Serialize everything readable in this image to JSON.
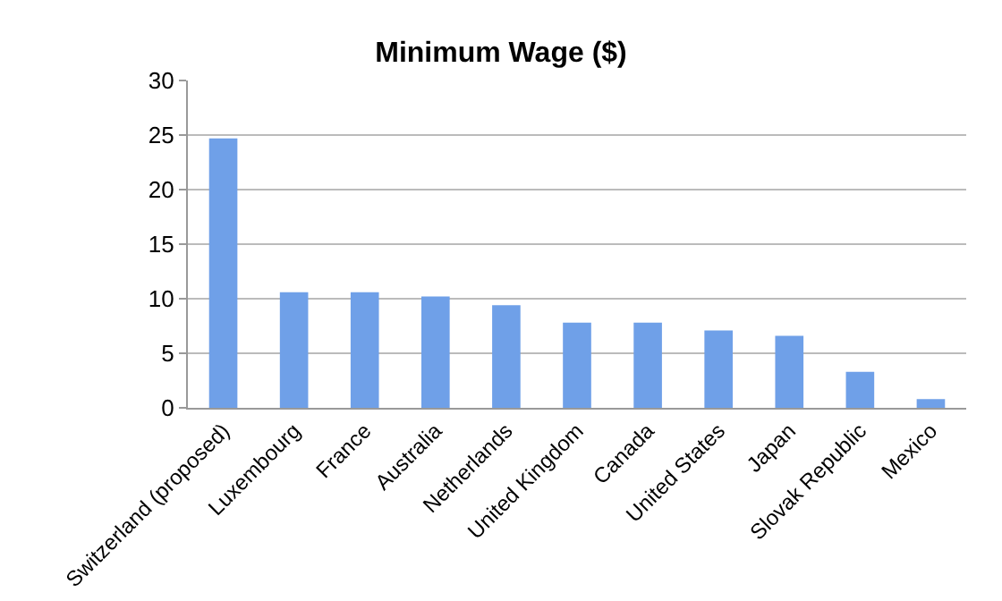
{
  "chart_data": {
    "type": "bar",
    "title": "Minimum Wage ($)",
    "categories": [
      "Switzerland (proposed)",
      "Luxembourg",
      "France",
      "Australia",
      "Netherlands",
      "United Kingdom",
      "Canada",
      "United States",
      "Japan",
      "Slovak Republic",
      "Mexico"
    ],
    "values": [
      24.7,
      10.6,
      10.6,
      10.2,
      9.4,
      7.8,
      7.8,
      7.1,
      6.6,
      3.3,
      0.8
    ],
    "color": "#6fa0e8",
    "ylim": [
      0,
      30
    ],
    "yticks": [
      0,
      5,
      10,
      15,
      20,
      25,
      30
    ],
    "grid": "y",
    "legend": false
  }
}
